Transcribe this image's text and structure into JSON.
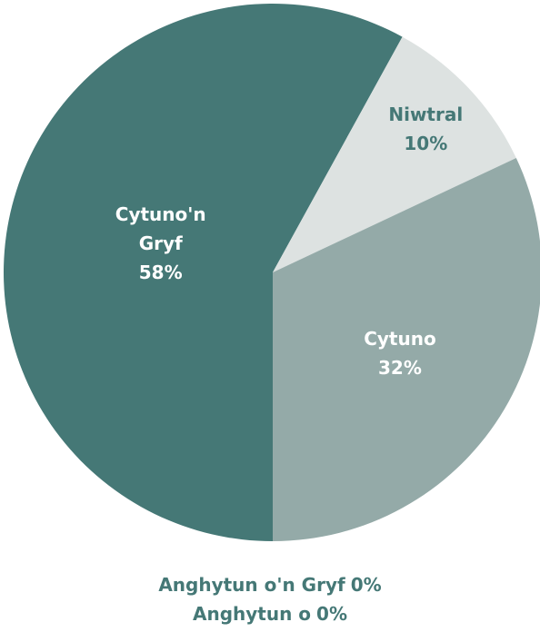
{
  "chart_data": {
    "type": "pie",
    "categories": [
      "Cytuno'n Gryf",
      "Niwtral",
      "Cytuno",
      "Anghytun o'n Gryf",
      "Anghytun o"
    ],
    "values": [
      58,
      10,
      32,
      0,
      0
    ],
    "value_labels": [
      "58%",
      "10%",
      "32%",
      "0%",
      "0%"
    ],
    "colors": [
      "#457876",
      "#dde2e1",
      "#94aaa8",
      "#6f8f8d",
      "#2f5553"
    ]
  }
}
